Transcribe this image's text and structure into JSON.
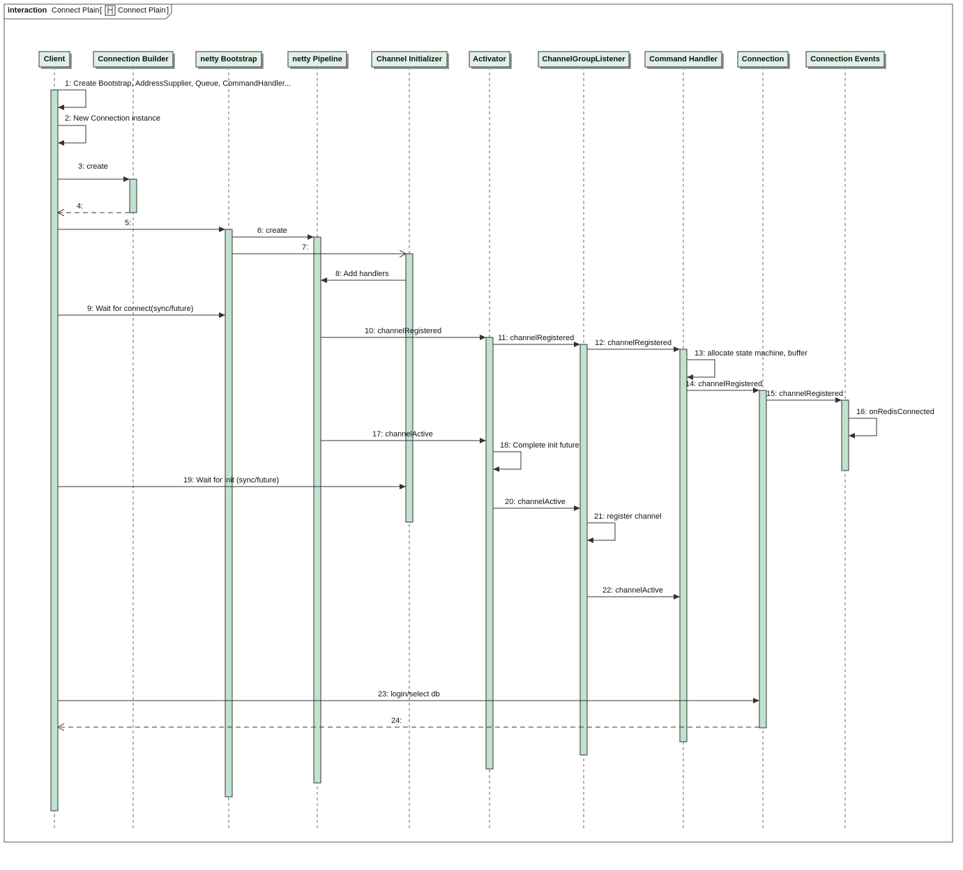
{
  "frame": {
    "keyword": "interaction",
    "name": "Connect Plain",
    "ref_open": "[",
    "ref_name": "Connect Plain",
    "ref_close": "]",
    "ref_icon": "interaction-icon"
  },
  "colors": {
    "lifeline_fill": "#dff0e6",
    "activation_fill": "#c0e2cf",
    "line": "#333333"
  },
  "participants": [
    {
      "id": "client",
      "label": "Client"
    },
    {
      "id": "builder",
      "label": "Connection Builder"
    },
    {
      "id": "bootstrap",
      "label": "netty Bootstrap"
    },
    {
      "id": "pipeline",
      "label": "netty Pipeline"
    },
    {
      "id": "initializer",
      "label": "Channel Initializer"
    },
    {
      "id": "activator",
      "label": "Activator"
    },
    {
      "id": "cgl",
      "label": "ChannelGroupListener"
    },
    {
      "id": "handler",
      "label": "Command Handler"
    },
    {
      "id": "connection",
      "label": "Connection"
    },
    {
      "id": "events",
      "label": "Connection Events"
    }
  ],
  "messages": [
    {
      "label": "1: Create Bootstrap, AddressSupplier, Queue, CommandHandler...",
      "from": "client",
      "to": "client",
      "kind": "self"
    },
    {
      "label": "2: New Connection instance",
      "from": "client",
      "to": "client",
      "kind": "self"
    },
    {
      "label": "3: create",
      "from": "client",
      "to": "builder",
      "kind": "call"
    },
    {
      "label": "4:",
      "from": "builder",
      "to": "client",
      "kind": "return"
    },
    {
      "label": "5:",
      "from": "client",
      "to": "bootstrap",
      "kind": "call"
    },
    {
      "label": "6: create",
      "from": "bootstrap",
      "to": "pipeline",
      "kind": "call"
    },
    {
      "label": "7:",
      "from": "bootstrap",
      "to": "initializer",
      "kind": "async"
    },
    {
      "label": "8: Add handlers",
      "from": "initializer",
      "to": "pipeline",
      "kind": "call"
    },
    {
      "label": "9: Wait for connect(sync/future)",
      "from": "client",
      "to": "bootstrap",
      "kind": "call"
    },
    {
      "label": "10: channelRegistered",
      "from": "pipeline",
      "to": "activator",
      "kind": "call"
    },
    {
      "label": "11: channelRegistered",
      "from": "activator",
      "to": "cgl",
      "kind": "call"
    },
    {
      "label": "12: channelRegistered",
      "from": "cgl",
      "to": "handler",
      "kind": "call"
    },
    {
      "label": "13: allocate state machine, buffer",
      "from": "handler",
      "to": "handler",
      "kind": "self"
    },
    {
      "label": "14: channelRegistered",
      "from": "handler",
      "to": "connection",
      "kind": "call"
    },
    {
      "label": "15: channelRegistered",
      "from": "connection",
      "to": "events",
      "kind": "call"
    },
    {
      "label": "16: onRedisConnected",
      "from": "events",
      "to": "events",
      "kind": "self"
    },
    {
      "label": "17: channelActive",
      "from": "pipeline",
      "to": "activator",
      "kind": "call"
    },
    {
      "label": "18: Complete init future",
      "from": "activator",
      "to": "activator",
      "kind": "self"
    },
    {
      "label": "19: Wait for init (sync/future)",
      "from": "client",
      "to": "initializer",
      "kind": "call"
    },
    {
      "label": "20: channelActive",
      "from": "activator",
      "to": "cgl",
      "kind": "call"
    },
    {
      "label": "21: register channel",
      "from": "cgl",
      "to": "cgl",
      "kind": "self"
    },
    {
      "label": "22: channelActive",
      "from": "cgl",
      "to": "handler",
      "kind": "call"
    },
    {
      "label": "23: login/select db",
      "from": "client",
      "to": "connection",
      "kind": "call"
    },
    {
      "label": "24:",
      "from": "connection",
      "to": "client",
      "kind": "return"
    }
  ]
}
